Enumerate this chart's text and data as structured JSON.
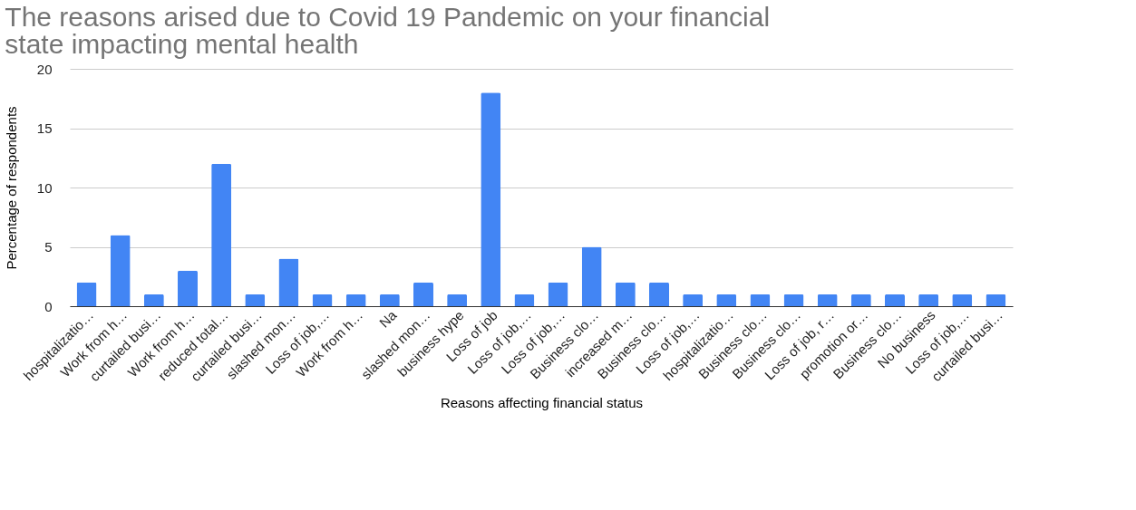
{
  "chart_data": {
    "type": "bar",
    "title": "The reasons arised due to Covid 19 Pandemic on your financial state  impacting mental health",
    "xlabel": "Reasons affecting financial status",
    "ylabel": "Percentage of respondents",
    "categories": [
      "hospitalizatio…",
      "Work from h…",
      "curtailed busi…",
      "Work from h…",
      "reduced total…",
      "curtailed busi…",
      "slashed mon…",
      "Loss of job,…",
      "Work from h…",
      "Na",
      "slashed mon…",
      "business hype",
      "Loss of job",
      "Loss of job,…",
      "Loss of job,…",
      "Business clo…",
      "increased m…",
      "Business clo…",
      "Loss of job,…",
      "hospitalizatio…",
      "Business clo…",
      "Business clo…",
      "Loss of job, r…",
      "promotion or…",
      "Business clo…",
      "No business",
      "Loss of job,…",
      "curtailed busi…"
    ],
    "values": [
      2,
      6,
      1,
      3,
      12,
      1,
      4,
      1,
      1,
      1,
      2,
      1,
      18,
      1,
      2,
      5,
      2,
      2,
      1,
      1,
      1,
      1,
      1,
      1,
      1,
      1,
      1,
      1
    ],
    "color": "#4285f4",
    "ylim": [
      0,
      20
    ],
    "yticks": [
      0,
      5,
      10,
      15,
      20
    ],
    "grid": "y"
  }
}
